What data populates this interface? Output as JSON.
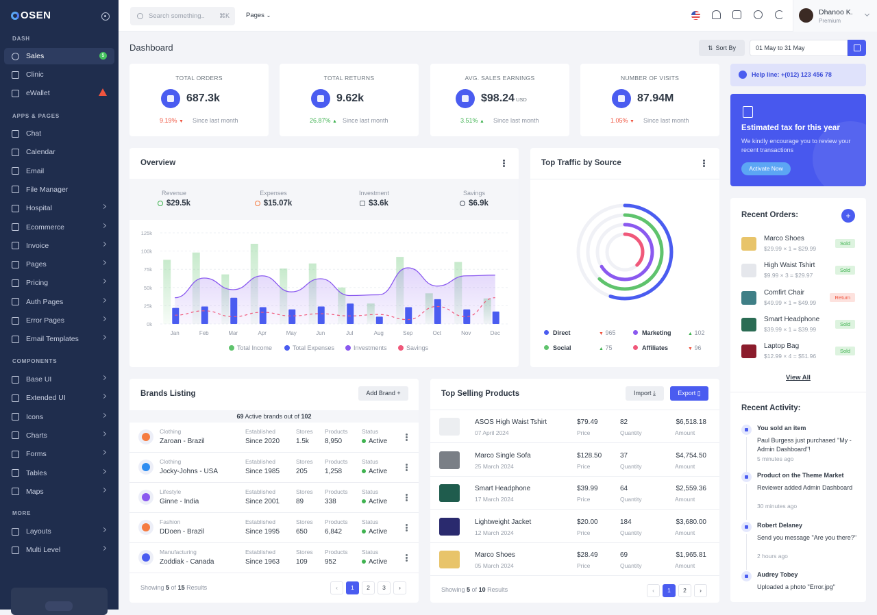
{
  "brand": {
    "name": "OSEN"
  },
  "sidebar": {
    "sections": {
      "dash": "DASH",
      "apps": "APPS & PAGES",
      "components": "COMPONENTS",
      "more": "MORE"
    },
    "dash": [
      {
        "label": "Sales",
        "badge": "5",
        "icon": "dashboard-icon"
      },
      {
        "label": "Clinic",
        "icon": "clinic-icon"
      },
      {
        "label": "eWallet",
        "icon": "wallet-icon"
      }
    ],
    "apps": [
      {
        "label": "Chat"
      },
      {
        "label": "Calendar"
      },
      {
        "label": "Email"
      },
      {
        "label": "File Manager"
      },
      {
        "label": "Hospital"
      },
      {
        "label": "Ecommerce"
      },
      {
        "label": "Invoice"
      },
      {
        "label": "Pages"
      },
      {
        "label": "Pricing"
      },
      {
        "label": "Auth Pages"
      },
      {
        "label": "Error Pages"
      },
      {
        "label": "Email Templates"
      }
    ],
    "components": [
      {
        "label": "Base UI"
      },
      {
        "label": "Extended UI"
      },
      {
        "label": "Icons"
      },
      {
        "label": "Charts"
      },
      {
        "label": "Forms"
      },
      {
        "label": "Tables"
      },
      {
        "label": "Maps"
      }
    ],
    "more": [
      {
        "label": "Layouts"
      },
      {
        "label": "Multi Level"
      }
    ]
  },
  "topbar": {
    "search_placeholder": "Search something..",
    "shortcut": "⌘K",
    "pages_label": "Pages",
    "user_name": "Dhanoo K.",
    "user_role": "Premium"
  },
  "page": {
    "title": "Dashboard",
    "sort_label": "Sort By",
    "date_range": "01 May to 31 May"
  },
  "stats": [
    {
      "label": "TOTAL ORDERS",
      "value": "687.3k",
      "unit": "",
      "change": "9.19%",
      "dir": "down",
      "since": "Since last month"
    },
    {
      "label": "TOTAL RETURNS",
      "value": "9.62k",
      "unit": "",
      "change": "26.87%",
      "dir": "up",
      "since": "Since last month"
    },
    {
      "label": "AVG. SALES EARNINGS",
      "value": "$98.24",
      "unit": "USD",
      "change": "3.51%",
      "dir": "up",
      "since": "Since last month"
    },
    {
      "label": "NUMBER OF VISITS",
      "value": "87.94M",
      "unit": "",
      "change": "1.05%",
      "dir": "down",
      "since": "Since last month"
    }
  ],
  "overview": {
    "title": "Overview",
    "summary": [
      {
        "label": "Revenue",
        "value": "$29.5k"
      },
      {
        "label": "Expenses",
        "value": "$15.07k"
      },
      {
        "label": "Investment",
        "value": "$3.6k"
      },
      {
        "label": "Savings",
        "value": "$6.9k"
      }
    ]
  },
  "chart_data": {
    "type": "bar",
    "categories": [
      "Jan",
      "Feb",
      "Mar",
      "Apr",
      "May",
      "Jun",
      "Jul",
      "Aug",
      "Sep",
      "Oct",
      "Nov",
      "Dec"
    ],
    "y_ticks": [
      "0k",
      "25k",
      "50k",
      "75k",
      "100k",
      "125k"
    ],
    "ylim": [
      0,
      125000
    ],
    "series": [
      {
        "name": "Total Income",
        "type": "bar",
        "color": "#5fc36d",
        "values": [
          88000,
          98000,
          68000,
          110000,
          76000,
          83000,
          50000,
          28000,
          92000,
          42000,
          85000,
          35000
        ]
      },
      {
        "name": "Total Expenses",
        "type": "bar",
        "color": "#4a5cf0",
        "values": [
          22000,
          24000,
          36000,
          23000,
          20000,
          24000,
          28000,
          10000,
          23000,
          34000,
          20000,
          17000
        ]
      },
      {
        "name": "Investments",
        "type": "area",
        "color": "#8a59ef",
        "values": [
          36000,
          63000,
          47000,
          66000,
          44000,
          62000,
          39000,
          40000,
          77000,
          52000,
          66000,
          67000
        ]
      },
      {
        "name": "Savings",
        "type": "line",
        "color": "#f0587a",
        "values": [
          12000,
          18000,
          10000,
          16000,
          11000,
          14000,
          11000,
          13000,
          6000,
          24000,
          10000,
          36000
        ]
      }
    ]
  },
  "traffic": {
    "title": "Top Traffic by Source",
    "rings": [
      {
        "name": "Direct",
        "value": "965",
        "color": "#4a5cf0",
        "fraction": 0.55
      },
      {
        "name": "Social",
        "value": "75",
        "color": "#5fc36d",
        "fraction": 0.62
      },
      {
        "name": "Marketing",
        "value": "102",
        "color": "#8a59ef",
        "fraction": 0.66
      },
      {
        "name": "Affiliates",
        "value": "96",
        "color": "#f0587a",
        "fraction": 0.38
      }
    ]
  },
  "help": {
    "label": "Help line:",
    "phone": "+(012) 123 456 78"
  },
  "tax": {
    "title": "Estimated tax for this year",
    "text": "We kindly encourage you to review your recent transactions",
    "button": "Activate Now"
  },
  "recent_orders": {
    "title": "Recent Orders:",
    "items": [
      {
        "name": "Marco Shoes",
        "sub": "$29.99 × 1 = $29.99",
        "status": "Sold"
      },
      {
        "name": "High Waist Tshirt",
        "sub": "$9.99 × 3 = $29.97",
        "status": "Sold"
      },
      {
        "name": "Comfirt Chair",
        "sub": "$49.99 × 1 = $49.99",
        "status": "Return"
      },
      {
        "name": "Smart Headphone",
        "sub": "$39.99 × 1 = $39.99",
        "status": "Sold"
      },
      {
        "name": "Laptop Bag",
        "sub": "$12.99 × 4 = $51.96",
        "status": "Sold"
      }
    ],
    "view_all": "View All"
  },
  "recent_activity": {
    "title": "Recent Activity:",
    "items": [
      {
        "title": "You sold an item",
        "body": "Paul Burgess just purchased \"My - Admin Dashboard\"!",
        "time": "5 minutes ago"
      },
      {
        "title": "Product on the Theme Market",
        "body": "Reviewer added Admin Dashboard",
        "time": "30 minutes ago"
      },
      {
        "title": "Robert Delaney",
        "body": "Send you message \"Are you there?\"",
        "time": "2 hours ago"
      },
      {
        "title": "Audrey Tobey",
        "body": "Uploaded a photo \"Error.jpg\"",
        "time": ""
      }
    ]
  },
  "brands": {
    "title": "Brands Listing",
    "add_label": "Add Brand",
    "summary_pre": "69",
    "summary_mid": " Active brands out of ",
    "summary_post": "102",
    "headers": {
      "established": "Established",
      "stores": "Stores",
      "products": "Products",
      "status": "Status"
    },
    "rows": [
      {
        "category": "Clothing",
        "name": "Zaroan - Brazil",
        "established": "Since 2020",
        "stores": "1.5k",
        "products": "8,950",
        "status": "Active"
      },
      {
        "category": "Clothing",
        "name": "Jocky-Johns - USA",
        "established": "Since 1985",
        "stores": "205",
        "products": "1,258",
        "status": "Active"
      },
      {
        "category": "Lifestyle",
        "name": "Ginne - India",
        "established": "Since 2001",
        "stores": "89",
        "products": "338",
        "status": "Active"
      },
      {
        "category": "Fashion",
        "name": "DDoen - Brazil",
        "established": "Since 1995",
        "stores": "650",
        "products": "6,842",
        "status": "Active"
      },
      {
        "category": "Manufacturing",
        "name": "Zoddiak - Canada",
        "established": "Since 1963",
        "stores": "109",
        "products": "952",
        "status": "Active"
      }
    ],
    "footer": {
      "pre": "Showing ",
      "shown": "5",
      "mid": " of ",
      "total": "15",
      "post": " Results"
    },
    "pages": [
      "1",
      "2",
      "3"
    ]
  },
  "products": {
    "title": "Top Selling Products",
    "import_label": "Import",
    "export_label": "Export",
    "headers": {
      "price": "Price",
      "quantity": "Quantity",
      "amount": "Amount"
    },
    "rows": [
      {
        "name": "ASOS High Waist Tshirt",
        "date": "07 April 2024",
        "price": "$79.49",
        "quantity": "82",
        "amount": "$6,518.18"
      },
      {
        "name": "Marco Single Sofa",
        "date": "25 March 2024",
        "price": "$128.50",
        "quantity": "37",
        "amount": "$4,754.50"
      },
      {
        "name": "Smart Headphone",
        "date": "17 March 2024",
        "price": "$39.99",
        "quantity": "64",
        "amount": "$2,559.36"
      },
      {
        "name": "Lightweight Jacket",
        "date": "12 March 2024",
        "price": "$20.00",
        "quantity": "184",
        "amount": "$3,680.00"
      },
      {
        "name": "Marco Shoes",
        "date": "05 March 2024",
        "price": "$28.49",
        "quantity": "69",
        "amount": "$1,965.81"
      }
    ],
    "footer": {
      "pre": "Showing ",
      "shown": "5",
      "mid": " of ",
      "total": "10",
      "post": " Results"
    },
    "pages": [
      "1",
      "2"
    ]
  }
}
